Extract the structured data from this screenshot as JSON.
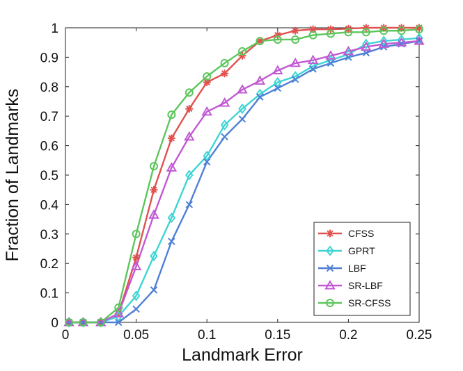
{
  "chart_data": {
    "type": "line",
    "title": "",
    "xlabel": "Landmark Error",
    "ylabel": "Fraction of Landmarks",
    "xlim": [
      0,
      0.25
    ],
    "ylim": [
      0,
      1
    ],
    "xticks": [
      0,
      0.05,
      0.1,
      0.15,
      0.2,
      0.25
    ],
    "xtick_labels": [
      "0",
      "0.05",
      "0.1",
      "0.15",
      "0.2",
      "0.25"
    ],
    "yticks": [
      0,
      0.1,
      0.2,
      0.3,
      0.4,
      0.5,
      0.6,
      0.7,
      0.8,
      0.9,
      1
    ],
    "ytick_labels": [
      "0",
      "0.1",
      "0.2",
      "0.3",
      "0.4",
      "0.5",
      "0.6",
      "0.7",
      "0.8",
      "0.9",
      "1"
    ],
    "grid": false,
    "legend_position": "bottom-right",
    "x": [
      0.0025,
      0.0125,
      0.025,
      0.0375,
      0.05,
      0.0625,
      0.075,
      0.0875,
      0.1,
      0.1125,
      0.125,
      0.1375,
      0.15,
      0.1625,
      0.175,
      0.1875,
      0.2,
      0.2125,
      0.225,
      0.2375,
      0.25
    ],
    "series": [
      {
        "name": "CFSS",
        "color": "#e0524f",
        "marker": "star",
        "values": [
          0,
          0,
          0,
          0.03,
          0.22,
          0.45,
          0.625,
          0.725,
          0.815,
          0.845,
          0.905,
          0.955,
          0.975,
          0.99,
          0.995,
          0.995,
          0.997,
          1.0,
          1.0,
          1.0,
          1.0
        ]
      },
      {
        "name": "GPRT",
        "color": "#3fd4d4",
        "marker": "diamond",
        "values": [
          0,
          0,
          0,
          0.02,
          0.09,
          0.225,
          0.355,
          0.5,
          0.565,
          0.67,
          0.725,
          0.775,
          0.815,
          0.835,
          0.87,
          0.89,
          0.91,
          0.945,
          0.955,
          0.96,
          0.965
        ]
      },
      {
        "name": "LBF",
        "color": "#4f7fd6",
        "marker": "x",
        "values": [
          0,
          0,
          0,
          0,
          0.045,
          0.11,
          0.275,
          0.4,
          0.545,
          0.63,
          0.69,
          0.765,
          0.795,
          0.825,
          0.86,
          0.88,
          0.9,
          0.915,
          0.935,
          0.945,
          0.955
        ]
      },
      {
        "name": "SR-LBF",
        "color": "#c159d3",
        "marker": "triangle",
        "values": [
          0,
          0,
          0,
          0.03,
          0.19,
          0.365,
          0.525,
          0.63,
          0.715,
          0.745,
          0.79,
          0.82,
          0.855,
          0.88,
          0.89,
          0.905,
          0.92,
          0.935,
          0.945,
          0.95,
          0.955
        ]
      },
      {
        "name": "SR-CFSS",
        "color": "#5cc65c",
        "marker": "circle",
        "values": [
          0,
          0,
          0,
          0.05,
          0.3,
          0.53,
          0.705,
          0.78,
          0.835,
          0.88,
          0.92,
          0.955,
          0.96,
          0.96,
          0.975,
          0.98,
          0.985,
          0.985,
          0.99,
          0.99,
          0.995
        ]
      }
    ]
  }
}
